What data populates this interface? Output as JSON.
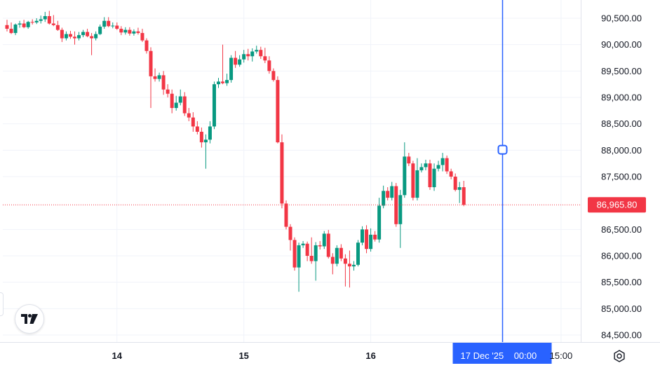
{
  "colors": {
    "up": "#089981",
    "down": "#f23645",
    "grid": "#f0f3fa",
    "crosshair": "#2962ff",
    "price_line": "#f23645",
    "text": "#131722"
  },
  "icons": {
    "logo": "tradingview-logo-icon",
    "settings": "settings-gear-icon"
  },
  "chart_data": {
    "type": "candlestick",
    "title": "",
    "y_ticks": [
      "90,500.00",
      "90,000.00",
      "89,500.00",
      "89,000.00",
      "88,500.00",
      "88,000.00",
      "87,500.00",
      "86,500.00",
      "86,000.00",
      "85,500.00",
      "85,000.00",
      "84,500.00"
    ],
    "y_tick_values": [
      90500,
      90000,
      89500,
      89000,
      88500,
      88000,
      87500,
      86500,
      86000,
      85500,
      85000,
      84500
    ],
    "ylim": [
      84400,
      90700
    ],
    "x_ticks": [
      {
        "label": "14",
        "bold": true,
        "bar": 26
      },
      {
        "label": "15",
        "bold": true,
        "bar": 56
      },
      {
        "label": "16",
        "bold": true,
        "bar": 86
      },
      {
        "label": "15:00",
        "bold": false,
        "bar": 131
      }
    ],
    "last_price": 86965.8,
    "last_price_label": "86,965.80",
    "crosshair": {
      "bar": 117,
      "price": 88010,
      "label_date": "17 Dec '25",
      "label_time": "00:00"
    },
    "grid": true,
    "bar_slots": 135,
    "candles": [
      [
        90370,
        90470,
        90250,
        90300
      ],
      [
        90300,
        90420,
        90200,
        90220
      ],
      [
        90220,
        90400,
        90180,
        90380
      ],
      [
        90380,
        90450,
        90320,
        90400
      ],
      [
        90400,
        90470,
        90310,
        90330
      ],
      [
        90330,
        90450,
        90300,
        90430
      ],
      [
        90430,
        90480,
        90380,
        90420
      ],
      [
        90420,
        90500,
        90390,
        90450
      ],
      [
        90450,
        90550,
        90400,
        90480
      ],
      [
        90480,
        90620,
        90430,
        90540
      ],
      [
        90540,
        90640,
        90380,
        90400
      ],
      [
        90400,
        90560,
        90350,
        90370
      ],
      [
        90370,
        90450,
        90260,
        90280
      ],
      [
        90280,
        90320,
        90050,
        90120
      ],
      [
        90120,
        90250,
        90080,
        90200
      ],
      [
        90200,
        90260,
        90110,
        90150
      ],
      [
        90150,
        90250,
        90000,
        90120
      ],
      [
        90120,
        90240,
        90080,
        90180
      ],
      [
        90180,
        90280,
        90140,
        90240
      ],
      [
        90240,
        90300,
        90140,
        90160
      ],
      [
        90160,
        90220,
        89800,
        90120
      ],
      [
        90120,
        90250,
        90080,
        90200
      ],
      [
        90200,
        90380,
        90180,
        90340
      ],
      [
        90340,
        90520,
        90300,
        90450
      ],
      [
        90450,
        90520,
        90330,
        90350
      ],
      [
        90350,
        90420,
        90310,
        90360
      ],
      [
        90360,
        90420,
        90280,
        90300
      ],
      [
        90300,
        90350,
        90180,
        90230
      ],
      [
        90230,
        90330,
        90190,
        90280
      ],
      [
        90280,
        90330,
        90170,
        90210
      ],
      [
        90210,
        90290,
        90170,
        90250
      ],
      [
        90250,
        90320,
        90190,
        90220
      ],
      [
        90220,
        90300,
        90050,
        90080
      ],
      [
        90080,
        90120,
        89830,
        89880
      ],
      [
        89880,
        89950,
        88800,
        89400
      ],
      [
        89400,
        89550,
        89300,
        89350
      ],
      [
        89350,
        89470,
        89300,
        89420
      ],
      [
        89420,
        89500,
        89050,
        89150
      ],
      [
        89150,
        89250,
        89000,
        89070
      ],
      [
        89070,
        89150,
        88700,
        88800
      ],
      [
        88800,
        89030,
        88750,
        88900
      ],
      [
        88900,
        89150,
        88850,
        89020
      ],
      [
        89020,
        89100,
        88650,
        88700
      ],
      [
        88700,
        88800,
        88550,
        88620
      ],
      [
        88620,
        88720,
        88350,
        88450
      ],
      [
        88450,
        88550,
        88300,
        88350
      ],
      [
        88350,
        88430,
        88050,
        88150
      ],
      [
        88150,
        88300,
        87650,
        88200
      ],
      [
        88200,
        88550,
        88130,
        88450
      ],
      [
        88450,
        89300,
        88400,
        89250
      ],
      [
        89250,
        89370,
        89180,
        89300
      ],
      [
        89300,
        90000,
        89250,
        89270
      ],
      [
        89270,
        89450,
        89220,
        89330
      ],
      [
        89330,
        89800,
        89280,
        89750
      ],
      [
        89750,
        89880,
        89560,
        89620
      ],
      [
        89620,
        89800,
        89580,
        89720
      ],
      [
        89720,
        89900,
        89660,
        89820
      ],
      [
        89820,
        89920,
        89700,
        89780
      ],
      [
        89780,
        89930,
        89680,
        89870
      ],
      [
        89870,
        89980,
        89830,
        89900
      ],
      [
        89900,
        89960,
        89730,
        89780
      ],
      [
        89780,
        89940,
        89650,
        89700
      ],
      [
        89700,
        89780,
        89450,
        89500
      ],
      [
        89500,
        89550,
        89300,
        89330
      ],
      [
        89330,
        89400,
        88130,
        88150
      ],
      [
        88150,
        88300,
        86900,
        86990
      ],
      [
        86990,
        87050,
        86500,
        86550
      ],
      [
        86550,
        86600,
        86100,
        86300
      ],
      [
        86300,
        86350,
        85720,
        85780
      ],
      [
        85780,
        86250,
        85320,
        86200
      ],
      [
        86200,
        86280,
        86150,
        86230
      ],
      [
        86230,
        86270,
        85900,
        86000
      ],
      [
        86000,
        86350,
        85850,
        85900
      ],
      [
        85900,
        86260,
        85530,
        86200
      ],
      [
        86200,
        86280,
        86120,
        86180
      ],
      [
        86180,
        86470,
        86130,
        86420
      ],
      [
        86420,
        86490,
        85950,
        85980
      ],
      [
        85980,
        86050,
        85650,
        85850
      ],
      [
        85850,
        86200,
        85800,
        86150
      ],
      [
        86150,
        86220,
        85900,
        85950
      ],
      [
        85950,
        86030,
        85420,
        85850
      ],
      [
        85850,
        86100,
        85400,
        85800
      ],
      [
        85800,
        85900,
        85720,
        85830
      ],
      [
        85830,
        86300,
        85800,
        86250
      ],
      [
        86250,
        86560,
        86200,
        86500
      ],
      [
        86500,
        86580,
        86050,
        86130
      ],
      [
        86130,
        86520,
        86080,
        86400
      ],
      [
        86400,
        86470,
        86270,
        86310
      ],
      [
        86310,
        87100,
        86250,
        86950
      ],
      [
        86950,
        87330,
        86900,
        87230
      ],
      [
        87230,
        87300,
        87050,
        87100
      ],
      [
        87100,
        87400,
        87050,
        87320
      ],
      [
        87320,
        87380,
        86550,
        86600
      ],
      [
        86600,
        87250,
        86150,
        87150
      ],
      [
        87150,
        88150,
        87100,
        87880
      ],
      [
        87880,
        87950,
        87700,
        87750
      ],
      [
        87750,
        87800,
        87050,
        87100
      ],
      [
        87100,
        87850,
        87050,
        87620
      ],
      [
        87620,
        87750,
        87580,
        87680
      ],
      [
        87680,
        87820,
        87620,
        87750
      ],
      [
        87750,
        87820,
        87250,
        87300
      ],
      [
        87300,
        87750,
        87230,
        87650
      ],
      [
        87650,
        87800,
        87600,
        87720
      ],
      [
        87720,
        87950,
        87600,
        87850
      ],
      [
        87850,
        87900,
        87550,
        87600
      ],
      [
        87600,
        87650,
        87450,
        87500
      ],
      [
        87500,
        87560,
        87220,
        87250
      ],
      [
        87250,
        87400,
        87000,
        87300
      ],
      [
        87300,
        87420,
        86940,
        86966
      ]
    ],
    "candle_bar_offset": 0
  }
}
